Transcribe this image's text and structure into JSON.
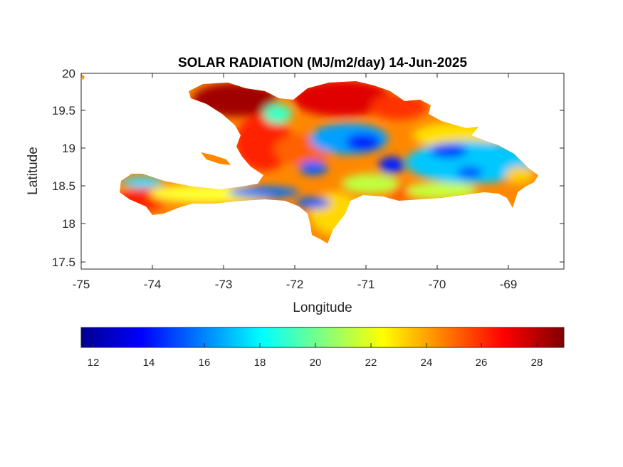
{
  "map": {
    "title": "SOLAR RADIATION (MJ/m2/day) 14-Jun-2025",
    "xlabel": "Longitude",
    "ylabel": "Latitude",
    "xlim": [
      -75,
      -68.2
    ],
    "ylim": [
      17.4,
      20
    ],
    "xticks": [
      -75,
      -74,
      -73,
      -72,
      -71,
      -70,
      -69
    ],
    "xtick_labels": [
      "-75",
      "-74",
      "-73",
      "-72",
      "-71",
      "-70",
      "-69"
    ],
    "yticks": [
      17.5,
      18,
      18.5,
      19,
      19.5,
      20
    ],
    "ytick_labels": [
      "17.5",
      "18",
      "18.5",
      "19",
      "19.5",
      "20"
    ],
    "region": "Hispaniola (Haiti and Dominican Republic)",
    "colormap": "jet",
    "colorbar": {
      "min": 11.6,
      "max": 29,
      "ticks": [
        12,
        14,
        16,
        18,
        20,
        22,
        24,
        26,
        28
      ],
      "tick_labels": [
        "12",
        "14",
        "16",
        "18",
        "20",
        "22",
        "24",
        "26",
        "28"
      ],
      "orientation": "horizontal",
      "placement": "below"
    }
  }
}
